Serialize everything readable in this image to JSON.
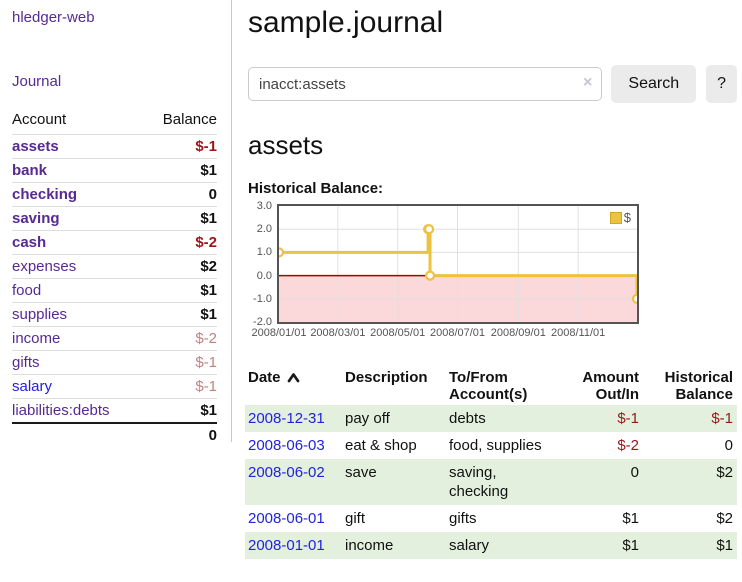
{
  "sidebar": {
    "brand": "hledger-web",
    "nav_journal": "Journal",
    "accounts_table": {
      "col_account": "Account",
      "col_balance": "Balance",
      "rows": [
        {
          "label": "assets",
          "indent": 1,
          "bold": true,
          "balance": "$-1",
          "balance_class": "neg"
        },
        {
          "label": "bank",
          "indent": 2,
          "bold": true,
          "balance": "$1",
          "balance_class": ""
        },
        {
          "label": "checking",
          "indent": 3,
          "bold": true,
          "balance": "0",
          "balance_class": ""
        },
        {
          "label": "saving",
          "indent": 3,
          "bold": true,
          "balance": "$1",
          "balance_class": ""
        },
        {
          "label": "cash",
          "indent": 2,
          "bold": true,
          "balance": "$-2",
          "balance_class": "neg"
        },
        {
          "label": "expenses",
          "indent": 1,
          "bold": false,
          "balance": "$2",
          "balance_class": ""
        },
        {
          "label": "food",
          "indent": 2,
          "bold": false,
          "balance": "$1",
          "balance_class": ""
        },
        {
          "label": "supplies",
          "indent": 2,
          "bold": false,
          "balance": "$1",
          "balance_class": ""
        },
        {
          "label": "income",
          "indent": 1,
          "bold": false,
          "balance": "$-2",
          "balance_class": "faded"
        },
        {
          "label": "gifts",
          "indent": 2,
          "bold": false,
          "balance": "$-1",
          "balance_class": "faded"
        },
        {
          "label": "salary",
          "indent": 2,
          "bold": false,
          "balance": "$-1",
          "balance_class": "faded",
          "link_class": "blue"
        },
        {
          "label": "liabilities:debts",
          "indent": 1,
          "bold": false,
          "balance": "$1",
          "balance_class": ""
        }
      ],
      "total": "0"
    }
  },
  "main": {
    "title": "sample.journal",
    "search": {
      "value": "inacct:assets",
      "clear_icon": "×",
      "search_label": "Search",
      "help_label": "?"
    },
    "account_heading": "assets",
    "chart_title": "Historical Balance:"
  },
  "chart_data": {
    "type": "line",
    "title": "Historical Balance:",
    "legend": {
      "label": "$",
      "position": "top-right"
    },
    "xlim": [
      "2008-01-01",
      "2008-12-31"
    ],
    "ylim": [
      -2,
      3
    ],
    "yticks": [
      {
        "label": "3.0",
        "value": 3
      },
      {
        "label": "2.0",
        "value": 2
      },
      {
        "label": "1.0",
        "value": 1
      },
      {
        "label": "0.0",
        "value": 0
      },
      {
        "label": "-1.0",
        "value": -1
      },
      {
        "label": "-2.0",
        "value": -2
      }
    ],
    "xticks": [
      {
        "label": "2008/01/01",
        "date": "2008-01-01"
      },
      {
        "label": "2008/03/01",
        "date": "2008-03-01"
      },
      {
        "label": "2008/05/01",
        "date": "2008-05-01"
      },
      {
        "label": "2008/07/01",
        "date": "2008-07-01"
      },
      {
        "label": "2008/09/01",
        "date": "2008-09-01"
      },
      {
        "label": "2008/11/01",
        "date": "2008-11-01"
      }
    ],
    "series": [
      {
        "name": "$",
        "color": "#edc240",
        "step": true,
        "points": [
          [
            "2008-01-01",
            1
          ],
          [
            "2008-06-01",
            2
          ],
          [
            "2008-06-02",
            2
          ],
          [
            "2008-06-03",
            0
          ],
          [
            "2008-12-31",
            -1
          ]
        ]
      }
    ],
    "negative_region_fill": "#fbd9da",
    "zero_line_color": "#a40000",
    "grid_color": "#e0e0e0",
    "border_color": "#545454",
    "grid": true
  },
  "register": {
    "headers": [
      {
        "label": "Date",
        "align": "left",
        "sort": "asc"
      },
      {
        "label": "Description",
        "align": "left"
      },
      {
        "label": "To/From Account(s)",
        "align": "left"
      },
      {
        "label": "Amount Out/In",
        "align": "right"
      },
      {
        "label": "Historical Balance",
        "align": "right"
      }
    ],
    "rows": [
      {
        "date": "2008-12-31",
        "description": "pay off",
        "accounts": "debts",
        "amount": "$-1",
        "amount_class": "neg",
        "balance": "$-1",
        "balance_class": "neg",
        "shaded": true
      },
      {
        "date": "2008-06-03",
        "description": "eat & shop",
        "accounts": "food, supplies",
        "amount": "$-2",
        "amount_class": "neg",
        "balance": "0",
        "balance_class": "",
        "shaded": false
      },
      {
        "date": "2008-06-02",
        "description": "save",
        "accounts": "saving, checking",
        "amount": "0",
        "amount_class": "",
        "balance": "$2",
        "balance_class": "",
        "shaded": true
      },
      {
        "date": "2008-06-01",
        "description": "gift",
        "accounts": "gifts",
        "amount": "$1",
        "amount_class": "",
        "balance": "$2",
        "balance_class": "",
        "shaded": false
      },
      {
        "date": "2008-01-01",
        "description": "income",
        "accounts": "salary",
        "amount": "$1",
        "amount_class": "",
        "balance": "$1",
        "balance_class": "",
        "shaded": true
      }
    ]
  }
}
